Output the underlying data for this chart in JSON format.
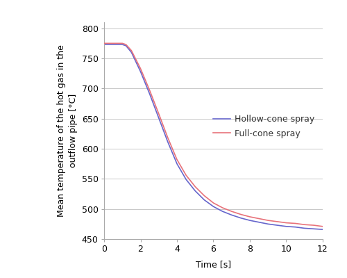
{
  "title": "",
  "xlabel": "Time [s]",
  "ylabel": "Mean temperature of the hot gas in the\noutflow pipe [°C]",
  "xlim": [
    0,
    12
  ],
  "ylim": [
    450,
    810
  ],
  "yticks": [
    450,
    500,
    550,
    600,
    650,
    700,
    750,
    800
  ],
  "xticks": [
    0,
    2,
    4,
    6,
    8,
    10,
    12
  ],
  "full_cone_color": "#e8727a",
  "hollow_cone_color": "#6666cc",
  "legend_labels": [
    "Full-cone spray",
    "Hollow-cone spray"
  ],
  "full_cone_x": [
    0,
    0.5,
    1.0,
    1.2,
    1.5,
    2.0,
    2.5,
    3.0,
    3.5,
    4.0,
    4.5,
    5.0,
    5.5,
    6.0,
    6.5,
    7.0,
    7.5,
    8.0,
    8.5,
    9.0,
    9.5,
    10.0,
    10.5,
    11.0,
    11.5,
    12.0
  ],
  "full_cone_y": [
    775,
    775,
    775,
    773,
    763,
    733,
    697,
    658,
    618,
    582,
    556,
    537,
    522,
    510,
    502,
    496,
    491,
    487,
    484,
    481,
    479,
    477,
    476,
    474,
    473,
    471
  ],
  "hollow_cone_x": [
    0,
    0.5,
    1.0,
    1.2,
    1.5,
    2.0,
    2.5,
    3.0,
    3.5,
    4.0,
    4.5,
    5.0,
    5.5,
    6.0,
    6.5,
    7.0,
    7.5,
    8.0,
    8.5,
    9.0,
    9.5,
    10.0,
    10.5,
    11.0,
    11.5,
    12.0
  ],
  "hollow_cone_y": [
    773,
    773,
    773,
    771,
    760,
    728,
    691,
    651,
    611,
    575,
    549,
    530,
    515,
    504,
    496,
    490,
    485,
    481,
    478,
    475,
    473,
    471,
    470,
    468,
    467,
    466
  ],
  "line_width": 1.2,
  "background_color": "#ffffff",
  "grid_color": "#c8c8c8",
  "label_fontsize": 9,
  "tick_fontsize": 9,
  "legend_fontsize": 9
}
